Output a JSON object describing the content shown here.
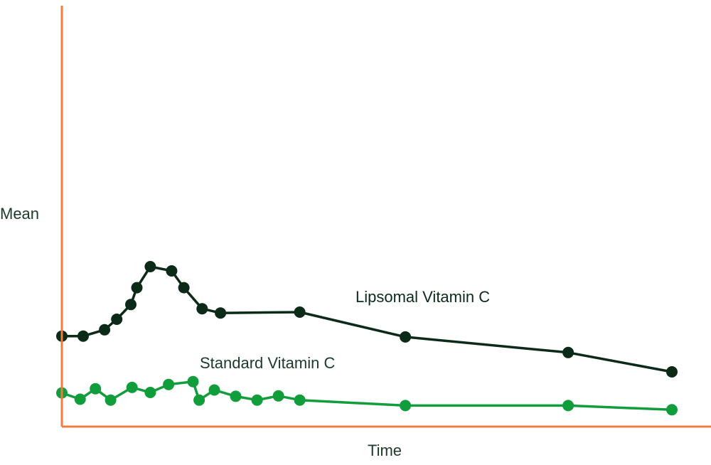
{
  "chart_data": {
    "type": "line",
    "title": "",
    "xlabel": "Time",
    "ylabel": "Mean",
    "grid": false,
    "legend": "inline labels",
    "axis_color": "#f07b3f",
    "text_color": "#1c3a27",
    "xlim": [
      0,
      100
    ],
    "ylim": [
      0,
      100
    ],
    "series": [
      {
        "name": "Lipsomal Vitamin C",
        "color": "#0b2a17",
        "x": [
          0,
          3.5,
          7,
          9,
          11.3,
          12.3,
          14.5,
          18,
          20,
          23,
          26,
          39,
          56.3,
          83,
          100
        ],
        "y": [
          21.5,
          21.5,
          23,
          25.5,
          29,
          33,
          38,
          37,
          33,
          28,
          27,
          27.2,
          21.3,
          17.6,
          13
        ]
      },
      {
        "name": "Standard Vitamin C",
        "color": "#129d3d",
        "x": [
          0,
          3,
          5.5,
          8,
          11.5,
          14.5,
          17.5,
          21.5,
          22.5,
          25,
          28.5,
          32,
          35.5,
          39,
          56.3,
          83,
          100
        ],
        "y": [
          8,
          6.5,
          9,
          6.3,
          9.3,
          8.1,
          10,
          10.7,
          6.3,
          8.7,
          7.2,
          6.3,
          7.3,
          6.3,
          5,
          5,
          4
        ]
      }
    ]
  }
}
